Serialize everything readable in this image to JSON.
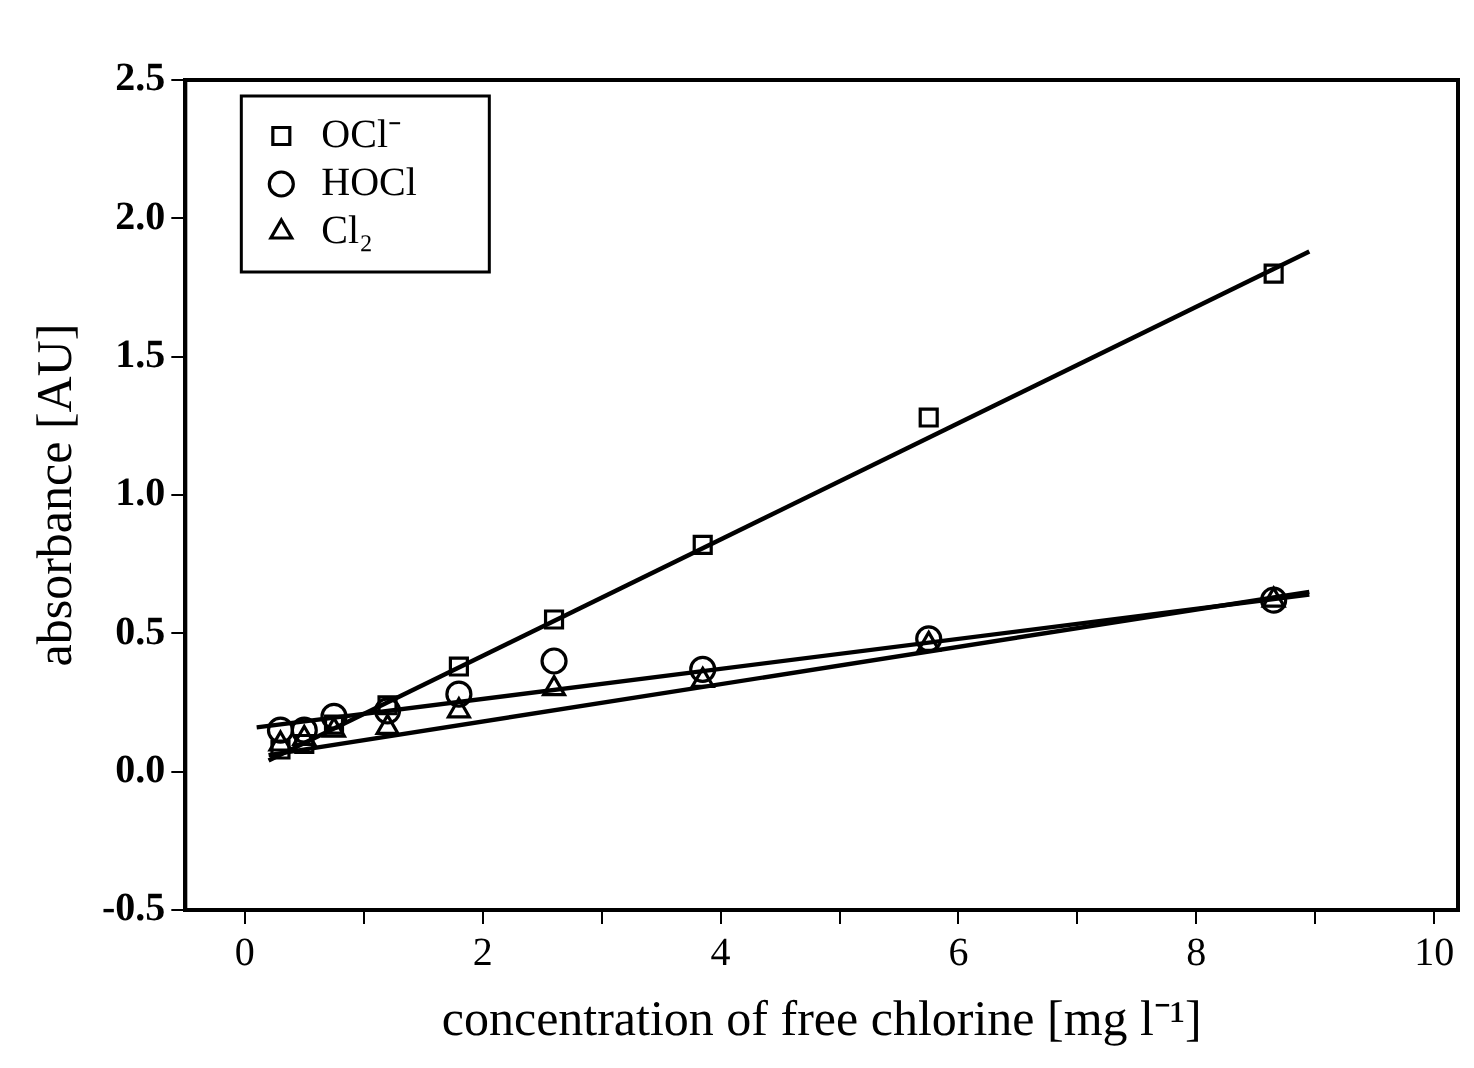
{
  "chart_data": {
    "type": "scatter",
    "xlabel": "concentration of free chlorine [mg l⁻¹]",
    "ylabel": "absorbance [AU]",
    "xlim": [
      -0.5,
      10.2
    ],
    "ylim": [
      -0.5,
      2.5
    ],
    "xticks": [
      0,
      {
        "value": 1,
        "label": null
      },
      2,
      {
        "value": 3,
        "label": null
      },
      4,
      {
        "value": 5,
        "label": null
      },
      6,
      {
        "value": 7,
        "label": null
      },
      8,
      {
        "value": 9,
        "label": null
      },
      10
    ],
    "yticks": [
      -0.5,
      {
        "value": 0,
        "label": "0.0"
      },
      0.5,
      {
        "value": 1,
        "label": "1.0"
      },
      1.5,
      {
        "value": 2,
        "label": "2.0"
      },
      2.5
    ],
    "grid": false,
    "legend": "top left",
    "series": [
      {
        "name": "OCl⁻",
        "color": "#000000",
        "marker": "square",
        "x": [
          0.3,
          0.5,
          0.75,
          1.2,
          1.8,
          2.6,
          3.85,
          5.75,
          8.65
        ],
        "values": [
          0.08,
          0.1,
          0.17,
          0.24,
          0.38,
          0.55,
          0.82,
          1.28,
          1.8
        ]
      },
      {
        "name": "HOCl",
        "color": "#000000",
        "marker": "circle",
        "x": [
          0.3,
          0.5,
          0.75,
          1.2,
          1.8,
          2.6,
          3.85,
          5.75,
          8.65
        ],
        "values": [
          0.15,
          0.15,
          0.2,
          0.22,
          0.28,
          0.4,
          0.37,
          0.48,
          0.62
        ]
      },
      {
        "name": "Cl₂",
        "color": "#000000",
        "marker": "triangle",
        "x": [
          0.3,
          0.5,
          0.75,
          1.2,
          1.8,
          2.6,
          3.85,
          5.75,
          8.65
        ],
        "values": [
          0.1,
          0.12,
          0.15,
          0.16,
          0.22,
          0.3,
          0.33,
          0.46,
          0.62
        ]
      },
      {
        "type": "line",
        "color": "#000000",
        "marker": "none",
        "x": [
          0.2,
          8.95
        ],
        "values": [
          0.04,
          1.88
        ]
      },
      {
        "type": "line",
        "color": "#000000",
        "marker": "none",
        "x": [
          0.1,
          8.95
        ],
        "values": [
          0.16,
          0.64
        ]
      },
      {
        "type": "line",
        "color": "#000000",
        "marker": "none",
        "x": [
          0.2,
          8.95
        ],
        "values": [
          0.06,
          0.65
        ]
      }
    ]
  }
}
